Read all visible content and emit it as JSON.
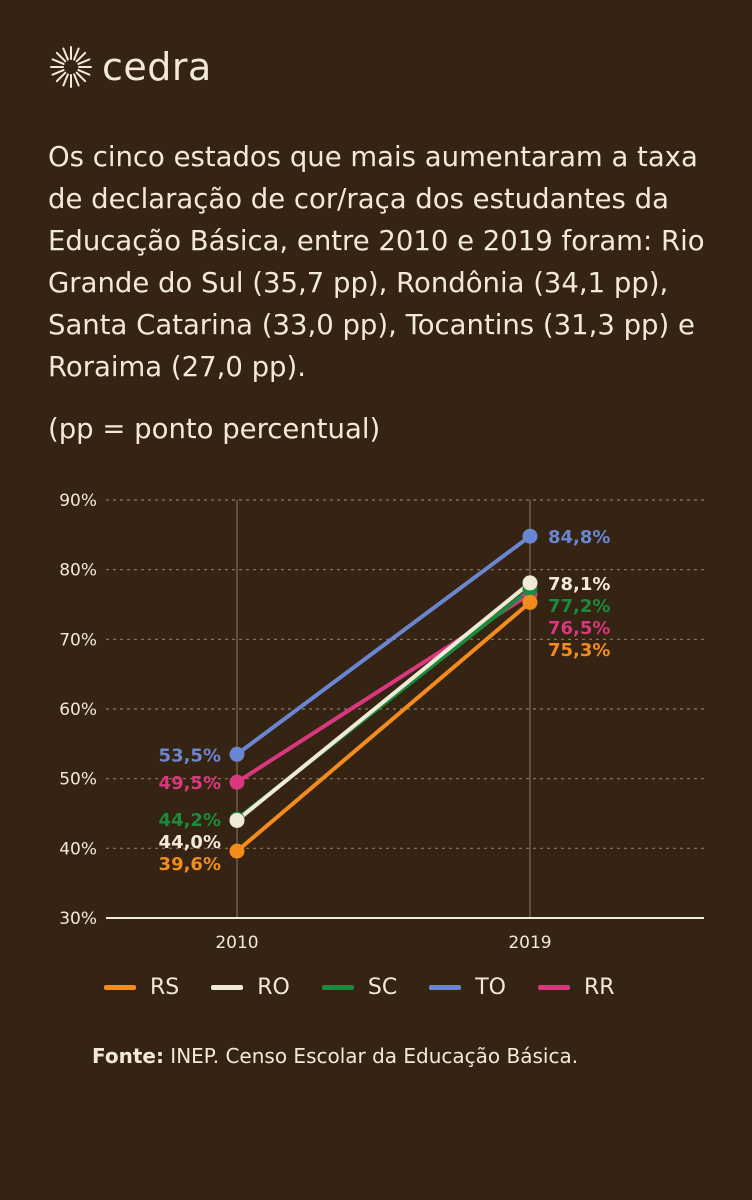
{
  "brand": {
    "name": "cedra",
    "icon": "sun-burst-icon"
  },
  "headline": "Os cinco estados que mais aumentaram a taxa de declaração de cor/raça dos estudantes da Educação Básica, entre 2010 e 2019 foram: Rio Grande do Sul (35,7 pp), Rondônia (34,1 pp), Santa Catarina (33,0 pp), Tocantins (31,3 pp) e Roraima (27,0 pp).",
  "note": "(pp = ponto percentual)",
  "source": {
    "label": "Fonte:",
    "text": " INEP. Censo Escolar da Educação Básica."
  },
  "colors": {
    "background": "#352313",
    "text": "#f1ead9",
    "grid": "#8a7b67"
  },
  "chart_data": {
    "type": "line",
    "x": [
      "2010",
      "2019"
    ],
    "ylim": [
      30,
      90
    ],
    "yticks": [
      "30%",
      "40%",
      "50%",
      "60%",
      "70%",
      "80%",
      "90%"
    ],
    "ytick_values": [
      30,
      40,
      50,
      60,
      70,
      80,
      90
    ],
    "grid": "dashed horizontal, solid vertical at each year",
    "legend_position": "bottom",
    "series": [
      {
        "name": "RS",
        "color": "#f28c1c",
        "values": [
          39.6,
          75.3
        ],
        "labels": [
          "39,6%",
          "75,3%"
        ]
      },
      {
        "name": "RO",
        "color": "#f1ead9",
        "values": [
          44.0,
          78.1
        ],
        "labels": [
          "44,0%",
          "78,1%"
        ]
      },
      {
        "name": "SC",
        "color": "#1a8a3c",
        "values": [
          44.2,
          77.2
        ],
        "labels": [
          "44,2%",
          "77,2%"
        ]
      },
      {
        "name": "TO",
        "color": "#6b86d0",
        "values": [
          53.5,
          84.8
        ],
        "labels": [
          "53,5%",
          "84,8%"
        ]
      },
      {
        "name": "RR",
        "color": "#d9377e",
        "values": [
          49.5,
          76.5
        ],
        "labels": [
          "49,5%",
          "76,5%"
        ]
      }
    ]
  }
}
